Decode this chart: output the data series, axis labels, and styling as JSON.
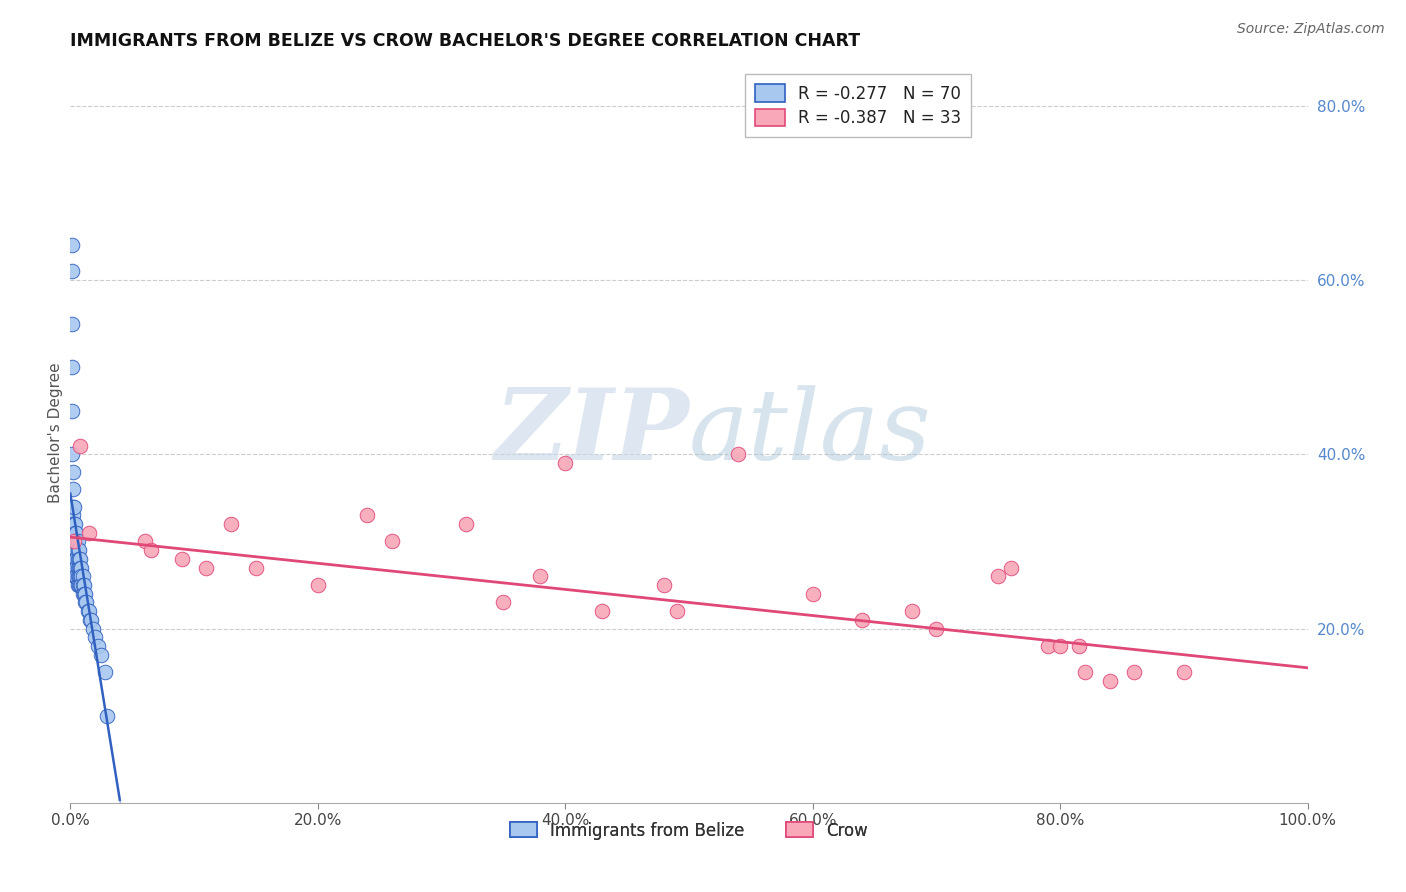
{
  "title": "IMMIGRANTS FROM BELIZE VS CROW BACHELOR'S DEGREE CORRELATION CHART",
  "source_text": "Source: ZipAtlas.com",
  "ylabel": "Bachelor's Degree",
  "xlim": [
    0.0,
    1.0
  ],
  "ylim": [
    0.0,
    0.85
  ],
  "x_tick_labels": [
    "0.0%",
    "20.0%",
    "40.0%",
    "60.0%",
    "80.0%",
    "100.0%"
  ],
  "x_tick_vals": [
    0.0,
    0.2,
    0.4,
    0.6,
    0.8,
    1.0
  ],
  "y_tick_labels": [
    "20.0%",
    "40.0%",
    "60.0%",
    "80.0%"
  ],
  "y_tick_vals": [
    0.2,
    0.4,
    0.6,
    0.8
  ],
  "watermark_zip": "ZIP",
  "watermark_atlas": "atlas",
  "legend_label1": "R = -0.277   N = 70",
  "legend_label2": "R = -0.387   N = 33",
  "legend_series1": "Immigrants from Belize",
  "legend_series2": "Crow",
  "color1": "#a8c8f0",
  "color2": "#f8a8b8",
  "line_color1": "#3060c0",
  "line_color2": "#e04878",
  "tick_color": "#5588cc",
  "blue_x": [
    0.001,
    0.001,
    0.001,
    0.001,
    0.001,
    0.001,
    0.002,
    0.002,
    0.002,
    0.002,
    0.002,
    0.002,
    0.002,
    0.003,
    0.003,
    0.003,
    0.003,
    0.003,
    0.003,
    0.003,
    0.003,
    0.004,
    0.004,
    0.004,
    0.004,
    0.004,
    0.004,
    0.004,
    0.005,
    0.005,
    0.005,
    0.005,
    0.005,
    0.005,
    0.006,
    0.006,
    0.006,
    0.006,
    0.006,
    0.006,
    0.007,
    0.007,
    0.007,
    0.007,
    0.007,
    0.008,
    0.008,
    0.008,
    0.008,
    0.009,
    0.009,
    0.009,
    0.01,
    0.01,
    0.01,
    0.011,
    0.011,
    0.012,
    0.012,
    0.013,
    0.014,
    0.015,
    0.016,
    0.017,
    0.018,
    0.02,
    0.022,
    0.025,
    0.028,
    0.03
  ],
  "blue_y": [
    0.64,
    0.61,
    0.55,
    0.5,
    0.45,
    0.4,
    0.38,
    0.36,
    0.34,
    0.33,
    0.32,
    0.31,
    0.3,
    0.34,
    0.32,
    0.31,
    0.3,
    0.29,
    0.28,
    0.27,
    0.26,
    0.32,
    0.31,
    0.3,
    0.29,
    0.28,
    0.27,
    0.26,
    0.31,
    0.3,
    0.29,
    0.28,
    0.27,
    0.26,
    0.3,
    0.29,
    0.28,
    0.27,
    0.26,
    0.25,
    0.29,
    0.28,
    0.27,
    0.26,
    0.25,
    0.28,
    0.27,
    0.26,
    0.25,
    0.27,
    0.26,
    0.25,
    0.26,
    0.25,
    0.24,
    0.25,
    0.24,
    0.24,
    0.23,
    0.23,
    0.22,
    0.22,
    0.21,
    0.21,
    0.2,
    0.19,
    0.18,
    0.17,
    0.15,
    0.1
  ],
  "pink_x": [
    0.003,
    0.008,
    0.015,
    0.06,
    0.065,
    0.09,
    0.11,
    0.13,
    0.15,
    0.2,
    0.24,
    0.26,
    0.32,
    0.35,
    0.38,
    0.4,
    0.43,
    0.48,
    0.49,
    0.54,
    0.6,
    0.64,
    0.68,
    0.7,
    0.75,
    0.76,
    0.79,
    0.8,
    0.815,
    0.82,
    0.84,
    0.86,
    0.9
  ],
  "pink_y": [
    0.3,
    0.41,
    0.31,
    0.3,
    0.29,
    0.28,
    0.27,
    0.32,
    0.27,
    0.25,
    0.33,
    0.3,
    0.32,
    0.23,
    0.26,
    0.39,
    0.22,
    0.25,
    0.22,
    0.4,
    0.24,
    0.21,
    0.22,
    0.2,
    0.26,
    0.27,
    0.18,
    0.18,
    0.18,
    0.15,
    0.14,
    0.15,
    0.15
  ],
  "blue_trendline_x": [
    0.0,
    0.033
  ],
  "blue_trendline_y": [
    0.355,
    0.065
  ],
  "pink_trendline_x": [
    0.0,
    1.0
  ],
  "pink_trendline_y": [
    0.305,
    0.155
  ]
}
